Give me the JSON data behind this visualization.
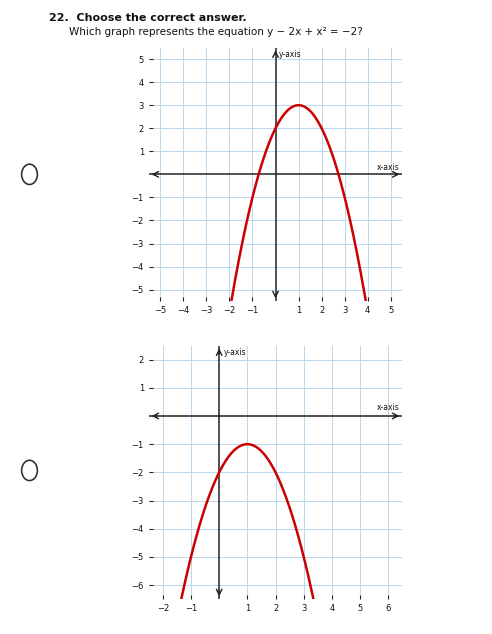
{
  "title_text": "22.  Choose the correct answer.",
  "question_text": "Which graph represents the equation y − 2x + x² = −2?",
  "graph1": {
    "xlim": [
      -5.5,
      5.5
    ],
    "ylim": [
      -5.5,
      5.5
    ],
    "xticks": [
      -5,
      -4,
      -3,
      -2,
      -1,
      1,
      2,
      3,
      4,
      5
    ],
    "yticks": [
      -5,
      -4,
      -3,
      -2,
      -1,
      1,
      2,
      3,
      4,
      5
    ],
    "xlabel": "x-axis",
    "ylabel": "y-axis",
    "curve_color": "#cc0000",
    "a": -1,
    "b": 2,
    "c": 2,
    "note": "y = -x^2 + 2x + 2, vertex at (1,3)"
  },
  "graph2": {
    "xlim": [
      -2.5,
      6.5
    ],
    "ylim": [
      -6.5,
      2.5
    ],
    "xticks": [
      -2,
      -1,
      1,
      2,
      3,
      4,
      5,
      6
    ],
    "yticks": [
      -6,
      -5,
      -4,
      -3,
      -2,
      -1,
      1,
      2
    ],
    "xlabel": "x-axis",
    "ylabel": "y-axis",
    "curve_color": "#cc0000",
    "a": -1,
    "b": 2,
    "c": -2,
    "note": "y = -x^2 + 2x - 2, vertex at (1,-1)"
  },
  "bg_color": "#ffffff",
  "grid_color": "#b8d8f0",
  "axis_color": "#222222",
  "radio_color": "#333333",
  "font_color": "#111111"
}
